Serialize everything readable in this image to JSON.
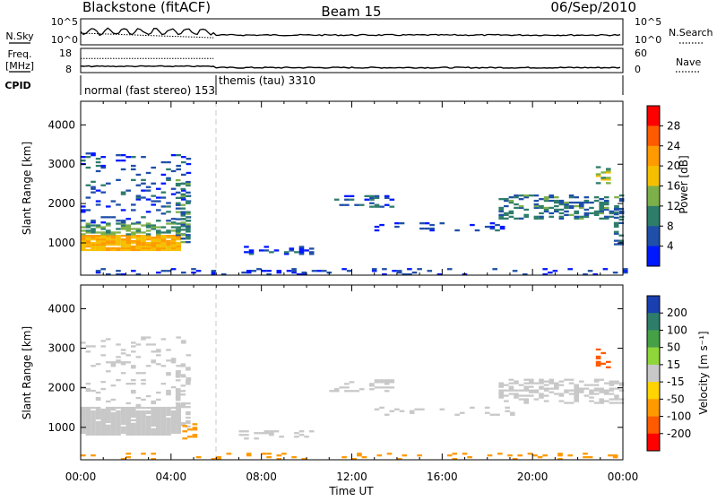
{
  "header": {
    "station": "Blackstone (fitACF)",
    "beam": "Beam 15",
    "date": "06/Sep/2010"
  },
  "status_panels": {
    "nsky": {
      "left_label": "N.Sky",
      "right_label": "N.Search",
      "left_ticks": [
        "10^5",
        "10^0"
      ],
      "right_ticks": [
        "10^5",
        "10^0"
      ]
    },
    "freq": {
      "left_label_lines": [
        "Freq.",
        "[MHz]"
      ],
      "right_label": "Nave",
      "left_ticks": [
        "18",
        "8"
      ],
      "right_ticks": [
        "60",
        "0"
      ]
    },
    "cpid": {
      "label": "CPID",
      "segments": [
        {
          "text": "normal (fast stereo) 153",
          "start_hour": 0
        },
        {
          "text": "themis (tau) 3310",
          "start_hour": 6
        }
      ]
    }
  },
  "colorbars": {
    "power": {
      "label": "Power [dB]",
      "ticks": [
        "28",
        "24",
        "20",
        "16",
        "12",
        "8",
        "4"
      ],
      "colors": [
        "#ff0000",
        "#ff5a00",
        "#ff9b00",
        "#f5c000",
        "#7db04a",
        "#2e7d6a",
        "#1f4fa8",
        "#0018ff"
      ]
    },
    "velocity": {
      "label": "Velocity [m s⁻¹]",
      "ticks": [
        "200",
        "100",
        "50",
        "15",
        "-15",
        "-50",
        "-100",
        "-200"
      ],
      "colors": [
        "#1a3fb0",
        "#2e7d6a",
        "#46a046",
        "#8fd63a",
        "#c8c8c8",
        "#ffd400",
        "#ff9900",
        "#ff5a00",
        "#ff0000"
      ]
    }
  },
  "x_axis": {
    "label": "Time UT",
    "tick_labels": [
      "00:00",
      "04:00",
      "08:00",
      "12:00",
      "16:00",
      "20:00",
      "00:00"
    ]
  },
  "chart_data": [
    {
      "type": "heatmap",
      "name": "power",
      "ylabel": "Slant Range [km]",
      "xlabel": "",
      "xlim_hours": [
        0,
        24
      ],
      "ylim": [
        180,
        4600
      ],
      "y_ticks": [
        1000,
        2000,
        3000,
        4000
      ],
      "x_ticks_hours": [
        0,
        4,
        8,
        12,
        16,
        20,
        24
      ],
      "mode_change_hour": 6,
      "clusters": [
        {
          "t0": 0.0,
          "t1": 4.3,
          "r0": 800,
          "r1": 1200,
          "value": 20,
          "density": 0.95
        },
        {
          "t0": 0.0,
          "t1": 4.6,
          "r0": 1200,
          "r1": 1500,
          "value": 12,
          "density": 0.55
        },
        {
          "t0": 0.0,
          "t1": 4.8,
          "r0": 1500,
          "r1": 3300,
          "value": 6,
          "density": 0.12
        },
        {
          "t0": 4.2,
          "t1": 4.8,
          "r0": 1000,
          "r1": 2600,
          "value": 9,
          "density": 0.5
        },
        {
          "t0": 7.0,
          "t1": 10.2,
          "r0": 700,
          "r1": 900,
          "value": 5,
          "density": 0.35
        },
        {
          "t0": 11.0,
          "t1": 13.8,
          "r0": 1900,
          "r1": 2200,
          "value": 6,
          "density": 0.3
        },
        {
          "t0": 13.0,
          "t1": 19.0,
          "r0": 1300,
          "r1": 1500,
          "value": 5,
          "density": 0.18
        },
        {
          "t0": 18.5,
          "t1": 24.0,
          "r0": 1600,
          "r1": 2200,
          "value": 9,
          "density": 0.45
        },
        {
          "t0": 22.8,
          "t1": 23.3,
          "r0": 2500,
          "r1": 3000,
          "value": 14,
          "density": 0.3
        },
        {
          "t0": 23.6,
          "t1": 24.0,
          "r0": 900,
          "r1": 1900,
          "value": 8,
          "density": 0.4
        },
        {
          "t0": 0.0,
          "t1": 24.0,
          "r0": 180,
          "r1": 320,
          "value": 4,
          "density": 0.18
        }
      ]
    },
    {
      "type": "heatmap",
      "name": "velocity",
      "ylabel": "Slant Range [km]",
      "xlabel": "Time UT",
      "xlim_hours": [
        0,
        24
      ],
      "ylim": [
        180,
        4600
      ],
      "y_ticks": [
        1000,
        2000,
        3000,
        4000
      ],
      "x_ticks_hours": [
        0,
        4,
        8,
        12,
        16,
        20,
        24
      ],
      "mode_change_hour": 6,
      "clusters": [
        {
          "t0": 0.0,
          "t1": 4.3,
          "r0": 800,
          "r1": 1500,
          "value": 0,
          "density": 0.9
        },
        {
          "t0": 0.0,
          "t1": 4.8,
          "r0": 1500,
          "r1": 3300,
          "value": 0,
          "density": 0.12
        },
        {
          "t0": 4.2,
          "t1": 4.8,
          "r0": 1000,
          "r1": 2600,
          "value": 0,
          "density": 0.45
        },
        {
          "t0": 4.5,
          "t1": 5.0,
          "r0": 700,
          "r1": 1100,
          "value": -80,
          "density": 0.3
        },
        {
          "t0": 7.0,
          "t1": 10.2,
          "r0": 700,
          "r1": 900,
          "value": 5,
          "density": 0.3
        },
        {
          "t0": 11.0,
          "t1": 13.8,
          "r0": 1900,
          "r1": 2200,
          "value": 5,
          "density": 0.3
        },
        {
          "t0": 13.0,
          "t1": 19.0,
          "r0": 1300,
          "r1": 1500,
          "value": 0,
          "density": 0.15
        },
        {
          "t0": 18.5,
          "t1": 24.0,
          "r0": 1600,
          "r1": 2200,
          "value": 0,
          "density": 0.45
        },
        {
          "t0": 22.8,
          "t1": 23.3,
          "r0": 2500,
          "r1": 3000,
          "value": -150,
          "density": 0.3
        },
        {
          "t0": 0.0,
          "t1": 24.0,
          "r0": 180,
          "r1": 320,
          "value": -60,
          "density": 0.16
        }
      ]
    }
  ]
}
